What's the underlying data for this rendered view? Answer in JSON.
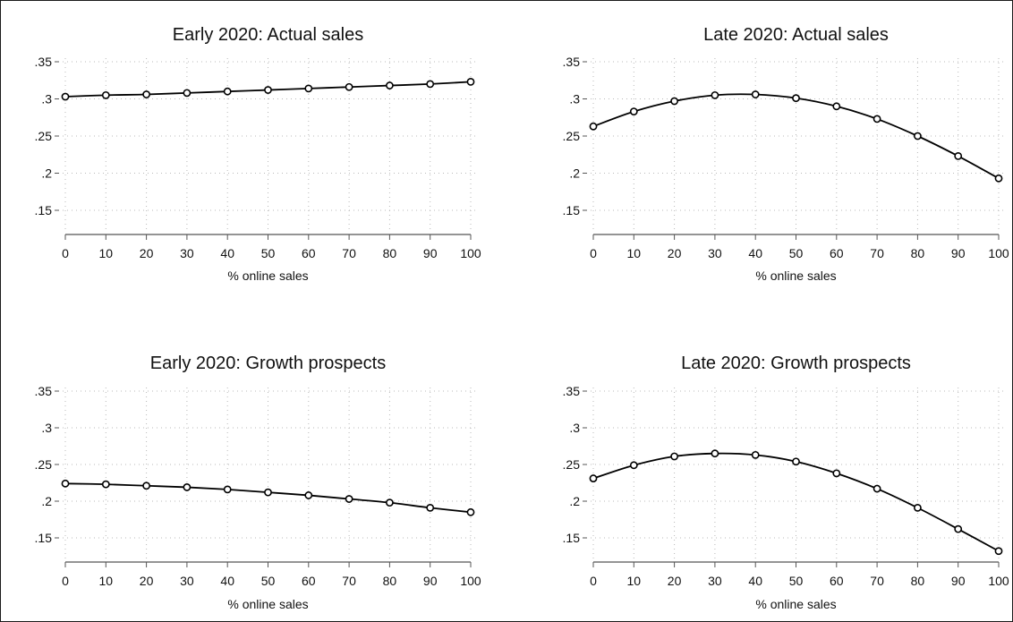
{
  "chart_data": [
    {
      "type": "line",
      "title": "Early 2020: Actual sales",
      "xlabel": "% online sales",
      "ylabel": "",
      "x": [
        0,
        10,
        20,
        30,
        40,
        50,
        60,
        70,
        80,
        90,
        100
      ],
      "values": [
        0.303,
        0.305,
        0.306,
        0.308,
        0.31,
        0.312,
        0.314,
        0.316,
        0.318,
        0.32,
        0.323
      ],
      "xlim": [
        0,
        100
      ],
      "ylim": [
        0.13,
        0.36
      ],
      "xticks": [
        "0",
        "10",
        "20",
        "30",
        "40",
        "50",
        "60",
        "70",
        "80",
        "90",
        "100"
      ],
      "yticks": [
        ".15",
        ".2",
        ".25",
        ".3",
        ".35"
      ],
      "grid": true
    },
    {
      "type": "line",
      "title": "Late 2020: Actual sales",
      "xlabel": "% online sales",
      "ylabel": "",
      "x": [
        0,
        10,
        20,
        30,
        40,
        50,
        60,
        70,
        80,
        90,
        100
      ],
      "values": [
        0.263,
        0.283,
        0.297,
        0.305,
        0.306,
        0.301,
        0.29,
        0.273,
        0.25,
        0.223,
        0.193
      ],
      "xlim": [
        0,
        100
      ],
      "ylim": [
        0.13,
        0.36
      ],
      "xticks": [
        "0",
        "10",
        "20",
        "30",
        "40",
        "50",
        "60",
        "70",
        "80",
        "90",
        "100"
      ],
      "yticks": [
        ".15",
        ".2",
        ".25",
        ".3",
        ".35"
      ],
      "grid": true
    },
    {
      "type": "line",
      "title": "Early 2020: Growth prospects",
      "xlabel": "% online sales",
      "ylabel": "",
      "x": [
        0,
        10,
        20,
        30,
        40,
        50,
        60,
        70,
        80,
        90,
        100
      ],
      "values": [
        0.224,
        0.223,
        0.221,
        0.219,
        0.216,
        0.212,
        0.208,
        0.203,
        0.198,
        0.191,
        0.185
      ],
      "xlim": [
        0,
        100
      ],
      "ylim": [
        0.13,
        0.36
      ],
      "xticks": [
        "0",
        "10",
        "20",
        "30",
        "40",
        "50",
        "60",
        "70",
        "80",
        "90",
        "100"
      ],
      "yticks": [
        ".15",
        ".2",
        ".25",
        ".3",
        ".35"
      ],
      "grid": true
    },
    {
      "type": "line",
      "title": "Late 2020: Growth prospects",
      "xlabel": "% online sales",
      "ylabel": "",
      "x": [
        0,
        10,
        20,
        30,
        40,
        50,
        60,
        70,
        80,
        90,
        100
      ],
      "values": [
        0.231,
        0.249,
        0.261,
        0.265,
        0.263,
        0.254,
        0.238,
        0.217,
        0.191,
        0.162,
        0.132
      ],
      "xlim": [
        0,
        100
      ],
      "ylim": [
        0.13,
        0.36
      ],
      "xticks": [
        "0",
        "10",
        "20",
        "30",
        "40",
        "50",
        "60",
        "70",
        "80",
        "90",
        "100"
      ],
      "yticks": [
        ".15",
        ".2",
        ".25",
        ".3",
        ".35"
      ],
      "grid": true
    }
  ]
}
